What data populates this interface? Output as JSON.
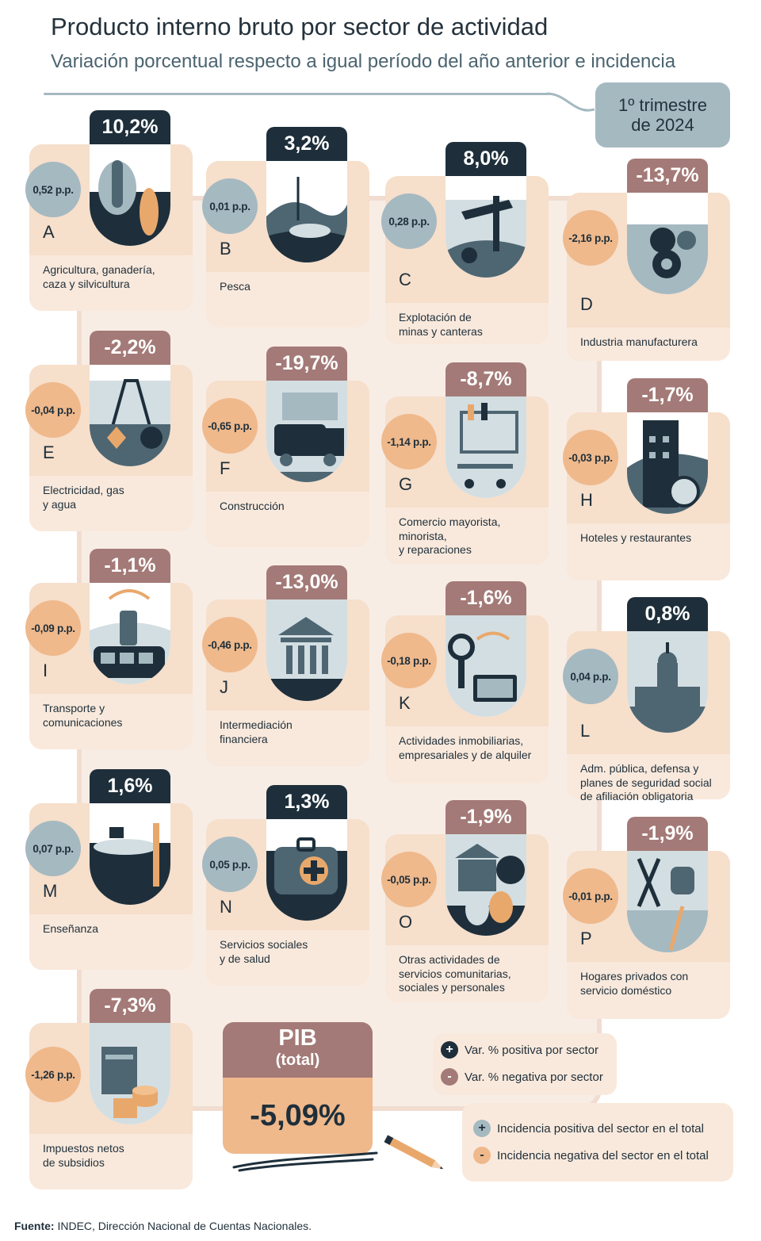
{
  "header": {
    "title": "Producto interno bruto por sector de actividad",
    "subtitle": "Variación porcentual respecto a igual período del año anterior e incidencia",
    "period": "1º trimestre\nde 2024"
  },
  "sectors": [
    {
      "letter": "A",
      "name": "Agricultura, ganadería,\ncaza y silvicultura",
      "variation": "10,2%",
      "variation_sign": "positive",
      "incidence": "0,52 p.p.",
      "incidence_sign": "positive",
      "icon": "livestock-wheat-icon"
    },
    {
      "letter": "B",
      "name": "Pesca",
      "variation": "3,2%",
      "variation_sign": "positive",
      "incidence": "0,01 p.p.",
      "incidence_sign": "positive",
      "icon": "fishing-hook-icon"
    },
    {
      "letter": "C",
      "name": "Explotación de\nminas y canteras",
      "variation": "8,0%",
      "variation_sign": "positive",
      "incidence": "0,28 p.p.",
      "incidence_sign": "positive",
      "icon": "oil-pump-icon"
    },
    {
      "letter": "D",
      "name": "Industria manufacturera",
      "variation": "-13,7%",
      "variation_sign": "negative",
      "incidence": "-2,16 p.p.",
      "incidence_sign": "negative",
      "icon": "gears-icon"
    },
    {
      "letter": "E",
      "name": "Electricidad, gas\ny agua",
      "variation": "-2,2%",
      "variation_sign": "negative",
      "incidence": "-0,04 p.p.",
      "incidence_sign": "negative",
      "icon": "power-tower-icon"
    },
    {
      "letter": "F",
      "name": "Construcción",
      "variation": "-19,7%",
      "variation_sign": "negative",
      "incidence": "-0,65 p.p.",
      "incidence_sign": "negative",
      "icon": "concrete-truck-icon"
    },
    {
      "letter": "G",
      "name": "Comercio mayorista,\nminorista,\ny reparaciones",
      "variation": "-8,7%",
      "variation_sign": "negative",
      "incidence": "-1,14 p.p.",
      "incidence_sign": "negative",
      "icon": "shopping-cart-icon"
    },
    {
      "letter": "H",
      "name": "Hoteles y restaurantes",
      "variation": "-1,7%",
      "variation_sign": "negative",
      "incidence": "-0,03 p.p.",
      "incidence_sign": "negative",
      "icon": "hotel-icon"
    },
    {
      "letter": "I",
      "name": "Transporte y\ncomunicaciones",
      "variation": "-1,1%",
      "variation_sign": "negative",
      "incidence": "-0,09 p.p.",
      "incidence_sign": "negative",
      "icon": "bus-phone-icon"
    },
    {
      "letter": "J",
      "name": "Intermediación\nfinanciera",
      "variation": "-13,0%",
      "variation_sign": "negative",
      "incidence": "-0,46 p.p.",
      "incidence_sign": "negative",
      "icon": "bank-building-icon"
    },
    {
      "letter": "K",
      "name": "Actividades inmobiliarias,\nempresariales y de alquiler",
      "variation": "-1,6%",
      "variation_sign": "negative",
      "incidence": "-0,18 p.p.",
      "incidence_sign": "negative",
      "icon": "key-computer-icon"
    },
    {
      "letter": "L",
      "name": "Adm. pública, defensa y\nplanes de seguridad social\nde afiliación obligatoria",
      "variation": "0,8%",
      "variation_sign": "positive",
      "incidence": "0,04 p.p.",
      "incidence_sign": "positive",
      "icon": "congress-building-icon"
    },
    {
      "letter": "M",
      "name": "Enseñanza",
      "variation": "1,6%",
      "variation_sign": "positive",
      "incidence": "0,07 p.p.",
      "incidence_sign": "positive",
      "icon": "graduation-cap-icon"
    },
    {
      "letter": "N",
      "name": "Servicios sociales\ny de salud",
      "variation": "1,3%",
      "variation_sign": "positive",
      "incidence": "0,05 p.p.",
      "incidence_sign": "positive",
      "icon": "medical-kit-icon"
    },
    {
      "letter": "O",
      "name": "Otras actividades de\nservicios comunitarias,\nsociales y personales",
      "variation": "-1,9%",
      "variation_sign": "negative",
      "incidence": "-0,05 p.p.",
      "incidence_sign": "negative",
      "icon": "theater-masks-icon"
    },
    {
      "letter": "P",
      "name": "Hogares privados con\nservicio doméstico",
      "variation": "-1,9%",
      "variation_sign": "negative",
      "incidence": "-0,01 p.p.",
      "incidence_sign": "negative",
      "icon": "household-tools-icon"
    },
    {
      "letter": "",
      "name": "Impuestos netos\nde subsidios",
      "variation": "-7,3%",
      "variation_sign": "negative",
      "incidence": "-1,26 p.p.",
      "incidence_sign": "negative",
      "icon": "coins-document-icon"
    }
  ],
  "pib": {
    "label": "PIB",
    "sublabel": "(total)",
    "value": "-5,09%"
  },
  "legend": {
    "var_positive": {
      "symbol": "+",
      "label": "Var. % positiva por sector"
    },
    "var_negative": {
      "symbol": "-",
      "label": "Var. % negativa por sector"
    },
    "inc_positive": {
      "symbol": "+",
      "label": "Incidencia positiva del sector en el total"
    },
    "inc_negative": {
      "symbol": "-",
      "label": "Incidencia negativa del sector en el total"
    }
  },
  "source": {
    "label": "Fuente:",
    "text": " INDEC, Dirección Nacional de Cuentas Nacionales."
  },
  "colors": {
    "positive_dark": "#1e2f3b",
    "negative_mauve": "#a37a77",
    "incidence_positive": "#a5b9c1",
    "incidence_negative": "#efb98c",
    "card_bg": "#f6dfcb",
    "card_lower": "#f9e9dc"
  }
}
